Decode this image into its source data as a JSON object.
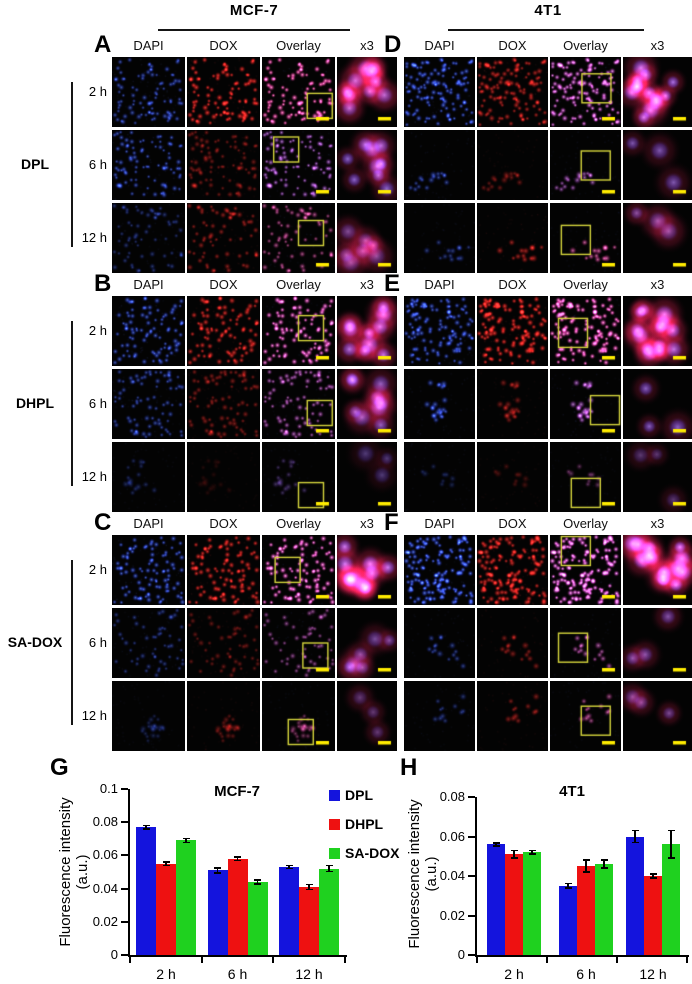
{
  "figure": {
    "cell_line_headers": [
      "MCF-7",
      "4T1"
    ],
    "column_labels": [
      "DAPI",
      "DOX",
      "Overlay",
      "x3"
    ],
    "time_labels": [
      "2 h",
      "6 h",
      "12 h"
    ],
    "treatments": [
      "DPL",
      "DHPL",
      "SA-DOX"
    ],
    "colors": {
      "dapi_channel": "#2a46e0",
      "dox_channel": "#e01818",
      "scale_bar": "#ffec00",
      "roi_box": "#d6d63c"
    },
    "panels": [
      {
        "letter": "A",
        "cell_line": "MCF-7",
        "treatment": "DPL",
        "rows": [
          {
            "time": "2 h",
            "cells": 90,
            "dapi": 0.7,
            "dox": 1.0,
            "cluster": false,
            "roi_box": [
              0.62,
              0.52
            ]
          },
          {
            "time": "6 h",
            "cells": 85,
            "dapi": 0.75,
            "dox": 0.5,
            "cluster": false,
            "roi_box": [
              0.16,
              0.1
            ]
          },
          {
            "time": "12 h",
            "cells": 65,
            "dapi": 0.45,
            "dox": 0.6,
            "cluster": false,
            "roi_box": [
              0.5,
              0.25
            ]
          }
        ]
      },
      {
        "letter": "B",
        "cell_line": "MCF-7",
        "treatment": "DHPL",
        "rows": [
          {
            "time": "2 h",
            "cells": 90,
            "dapi": 0.8,
            "dox": 0.9,
            "cluster": false,
            "roi_box": [
              0.5,
              0.28
            ]
          },
          {
            "time": "6 h",
            "cells": 78,
            "dapi": 0.65,
            "dox": 0.55,
            "cluster": false,
            "roi_box": [
              0.62,
              0.45
            ]
          },
          {
            "time": "12 h",
            "cells": 16,
            "dapi": 0.35,
            "dox": 0.15,
            "cluster": true,
            "roi_box": [
              0.5,
              0.58
            ]
          }
        ]
      },
      {
        "letter": "C",
        "cell_line": "MCF-7",
        "treatment": "SA-DOX",
        "rows": [
          {
            "time": "2 h",
            "cells": 95,
            "dapi": 0.85,
            "dox": 0.95,
            "cluster": false,
            "roi_box": [
              0.18,
              0.32
            ]
          },
          {
            "time": "6 h",
            "cells": 55,
            "dapi": 0.5,
            "dox": 0.45,
            "cluster": false,
            "roi_box": [
              0.56,
              0.5
            ]
          },
          {
            "time": "12 h",
            "cells": 22,
            "dapi": 0.3,
            "dox": 0.4,
            "cluster": true,
            "roi_box": [
              0.36,
              0.55
            ]
          }
        ]
      },
      {
        "letter": "D",
        "cell_line": "4T1",
        "treatment": "DPL",
        "rows": [
          {
            "time": "2 h",
            "cells": 120,
            "dapi": 0.85,
            "dox": 0.75,
            "cluster": false,
            "roi_box": [
              0.45,
              0.24
            ]
          },
          {
            "time": "6 h",
            "cells": 16,
            "dapi": 0.6,
            "dox": 0.45,
            "cluster": true,
            "roi_box": [
              0.44,
              0.3
            ]
          },
          {
            "time": "12 h",
            "cells": 13,
            "dapi": 0.5,
            "dox": 0.7,
            "cluster": true,
            "roi_box": [
              0.16,
              0.32
            ]
          }
        ]
      },
      {
        "letter": "E",
        "cell_line": "4T1",
        "treatment": "DHPL",
        "rows": [
          {
            "time": "2 h",
            "cells": 120,
            "dapi": 0.8,
            "dox": 1.0,
            "cluster": false,
            "roi_box": [
              0.12,
              0.32
            ]
          },
          {
            "time": "6 h",
            "cells": 22,
            "dapi": 0.7,
            "dox": 0.5,
            "cluster": true,
            "roi_box": [
              0.6,
              0.38
            ]
          },
          {
            "time": "12 h",
            "cells": 9,
            "dapi": 0.3,
            "dox": 0.3,
            "cluster": true,
            "roi_box": [
              0.3,
              0.52
            ]
          }
        ]
      },
      {
        "letter": "F",
        "cell_line": "4T1",
        "treatment": "SA-DOX",
        "rows": [
          {
            "time": "2 h",
            "cells": 150,
            "dapi": 0.95,
            "dox": 0.9,
            "cluster": false,
            "roi_box": [
              0.16,
              0.02
            ]
          },
          {
            "time": "6 h",
            "cells": 15,
            "dapi": 0.55,
            "dox": 0.55,
            "cluster": true,
            "roi_box": [
              0.12,
              0.36
            ]
          },
          {
            "time": "12 h",
            "cells": 11,
            "dapi": 0.45,
            "dox": 0.55,
            "cluster": true,
            "roi_box": [
              0.44,
              0.36
            ]
          }
        ]
      }
    ]
  },
  "chart_data": [
    {
      "type": "bar",
      "panel_label": "G",
      "title": "MCF-7",
      "categories": [
        "2 h",
        "6 h",
        "12 h"
      ],
      "series": [
        {
          "name": "DPL",
          "color": "#1414dd",
          "values": [
            0.077,
            0.051,
            0.053
          ],
          "errors": [
            0.001,
            0.0015,
            0.001
          ]
        },
        {
          "name": "DHPL",
          "color": "#ee1111",
          "values": [
            0.055,
            0.058,
            0.041
          ],
          "errors": [
            0.001,
            0.001,
            0.0015
          ]
        },
        {
          "name": "SA-DOX",
          "color": "#1fd11f",
          "values": [
            0.069,
            0.044,
            0.052
          ],
          "errors": [
            0.0012,
            0.0012,
            0.0018
          ]
        }
      ],
      "ylabel": "Fluorescence intensity",
      "ylabel2": "(a.u.)",
      "xlabel": "",
      "ylim": [
        0,
        0.1
      ],
      "yticks": [
        0,
        0.02,
        0.04,
        0.06,
        0.08,
        0.1
      ],
      "ytick_labels": [
        "0",
        "0.02",
        "0.04",
        "0.06",
        "0.08",
        "0.1"
      ],
      "grid": false,
      "legend": true,
      "legend_position": "right"
    },
    {
      "type": "bar",
      "panel_label": "H",
      "title": "4T1",
      "categories": [
        "2 h",
        "6 h",
        "12 h"
      ],
      "series": [
        {
          "name": "DPL",
          "color": "#1414dd",
          "values": [
            0.056,
            0.035,
            0.06
          ],
          "errors": [
            0.0008,
            0.0012,
            0.003
          ]
        },
        {
          "name": "DHPL",
          "color": "#ee1111",
          "values": [
            0.051,
            0.045,
            0.04
          ],
          "errors": [
            0.002,
            0.003,
            0.001
          ]
        },
        {
          "name": "SA-DOX",
          "color": "#1fd11f",
          "values": [
            0.052,
            0.046,
            0.056
          ],
          "errors": [
            0.0008,
            0.002,
            0.007
          ]
        }
      ],
      "ylabel": "Fluorescence intensity",
      "ylabel2": "(a.u.)",
      "xlabel": "",
      "ylim": [
        0,
        0.08
      ],
      "yticks": [
        0,
        0.02,
        0.04,
        0.06,
        0.08
      ],
      "ytick_labels": [
        "0",
        "0.02",
        "0.04",
        "0.06",
        "0.08"
      ],
      "grid": false,
      "legend": false
    }
  ]
}
